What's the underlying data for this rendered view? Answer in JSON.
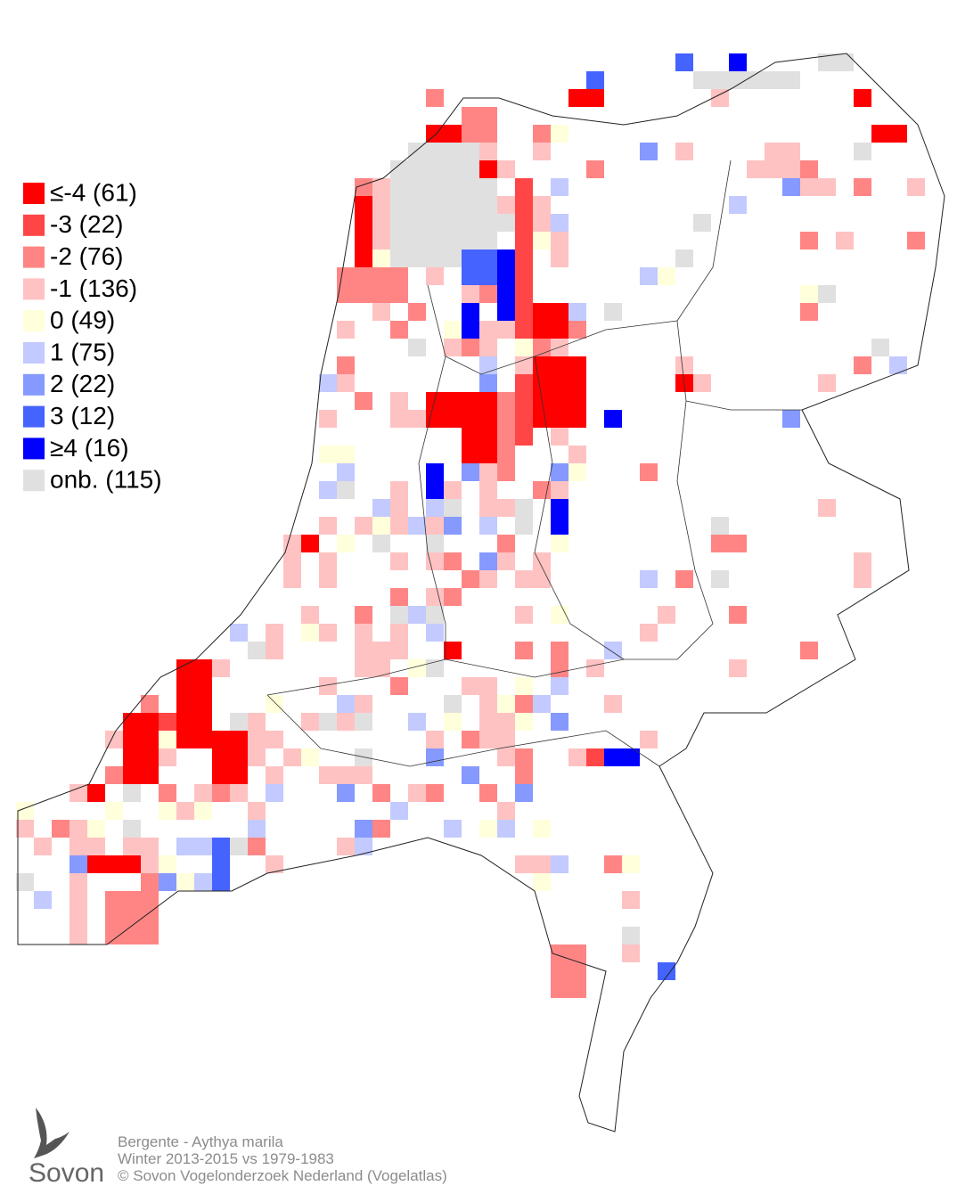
{
  "legend": {
    "items": [
      {
        "label": "≤-4 (61)",
        "color": "#ff0000"
      },
      {
        "label": "-3 (22)",
        "color": "#ff4545"
      },
      {
        "label": "-2 (76)",
        "color": "#ff8585"
      },
      {
        "label": "-1 (136)",
        "color": "#ffc2c2"
      },
      {
        "label": "0 (49)",
        "color": "#ffffdc"
      },
      {
        "label": "1 (75)",
        "color": "#c2caff"
      },
      {
        "label": "2 (22)",
        "color": "#8599ff"
      },
      {
        "label": "3 (12)",
        "color": "#4563ff"
      },
      {
        "label": "≥4 (16)",
        "color": "#0000ff"
      },
      {
        "label": "onb. (115)",
        "color": "#e0e0e0"
      }
    ]
  },
  "caption": {
    "lines": [
      "Bergente - Aythya marila",
      "Winter 2013-2015 vs 1979-1983",
      "© Sovon Vogelonderzoek Nederland (Vogelatlas)"
    ]
  },
  "logo": {
    "text": "Sovon"
  }
}
